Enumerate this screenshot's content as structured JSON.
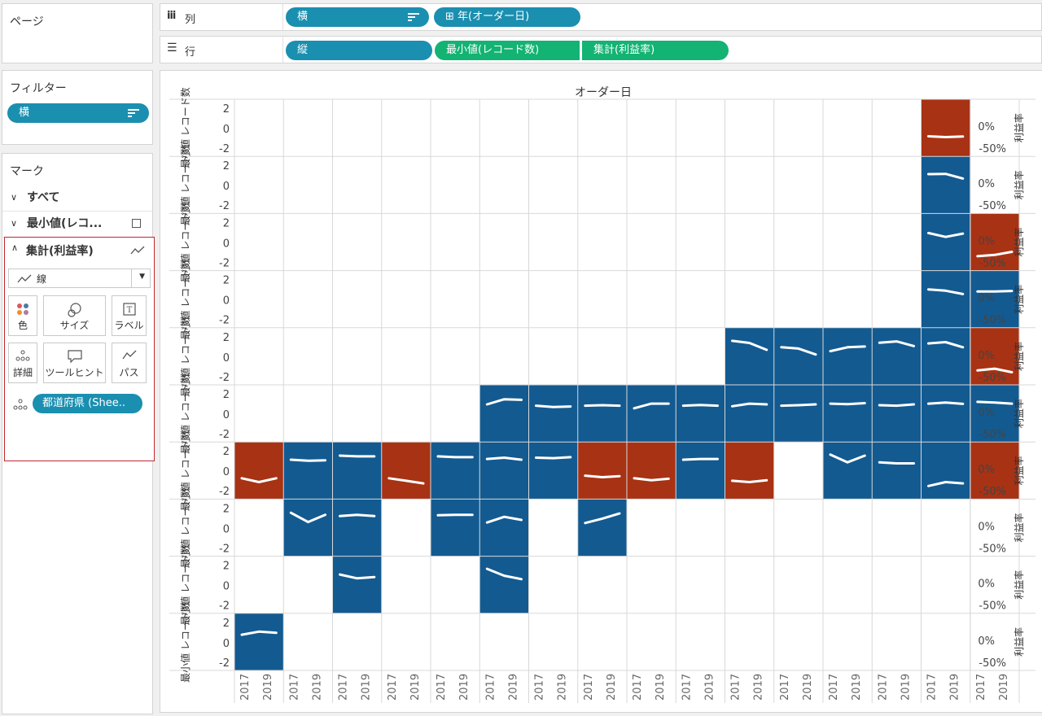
{
  "shelves": {
    "pages_title": "ページ",
    "columns_label": "列",
    "rows_label": "行",
    "columns_pills": [
      "横",
      "⊞ 年(オーダー日)"
    ],
    "rows_pills": [
      "縦",
      "最小値(レコード数)",
      "集計(利益率)"
    ]
  },
  "filters": {
    "title": "フィルター",
    "pill": "横"
  },
  "marks": {
    "title": "マーク",
    "all": "すべて",
    "min_card": "最小値(レコ...",
    "agg_card": "集計(利益率)",
    "mark_type": "線",
    "buttons": {
      "color": "色",
      "size": "サイズ",
      "label": "ラベル",
      "detail": "詳細",
      "tooltip": "ツールヒント",
      "path": "パス"
    },
    "detail_pill": "都道府県 (Shee.."
  },
  "colors": {
    "blue": "#135a91",
    "orange": "#a83214",
    "pill_blue": "#1a8fb0",
    "pill_green": "#13b373"
  },
  "chart_data": {
    "type": "line",
    "title": "オーダー日",
    "left_axis_label": "最小値 レコード数",
    "left_ticks": [
      "2",
      "0",
      "-2"
    ],
    "right_axis_label": "利益率",
    "right_ticks": [
      "0%",
      "-50%"
    ],
    "year_labels": [
      "2017",
      "2019"
    ],
    "cell_colors_legend": "B = blue (profit ≥ 0 overall), O = orange (negative), . = empty",
    "grid": [
      "..............O.",
      "..............B.",
      "..............BO",
      "..............BB",
      "..........BBBBBO",
      ".....BBBBBBBBBBB",
      "OBBOBBBOOBO.BBBO",
      ".BB.BB.B........",
      "..B..B..........",
      "B..............."
    ],
    "lines": {
      "0-14": [
        -0.33,
        -0.36,
        -0.34
      ],
      "1-14": [
        0.42,
        0.43,
        0.25
      ],
      "2-14": [
        0.35,
        0.2,
        0.33
      ],
      "2-15": [
        -0.55,
        -0.5,
        -0.38
      ],
      "3-14": [
        0.38,
        0.33,
        0.2
      ],
      "3-15": [
        0.3,
        0.3,
        0.32
      ],
      "4-10": [
        0.6,
        0.52,
        0.25
      ],
      "4-11": [
        0.35,
        0.3,
        0.07
      ],
      "4-12": [
        0.2,
        0.35,
        0.38
      ],
      "4-13": [
        0.53,
        0.58,
        0.4
      ],
      "4-14": [
        0.5,
        0.55,
        0.35
      ],
      "4-15": [
        -0.55,
        -0.48,
        -0.62
      ],
      "5-5": [
        0.35,
        0.55,
        0.53
      ],
      "5-6": [
        0.3,
        0.25,
        0.27
      ],
      "5-7": [
        0.3,
        0.32,
        0.3
      ],
      "5-8": [
        0.2,
        0.38,
        0.38
      ],
      "5-9": [
        0.3,
        0.33,
        0.3
      ],
      "5-10": [
        0.28,
        0.38,
        0.35
      ],
      "5-11": [
        0.3,
        0.32,
        0.35
      ],
      "5-12": [
        0.38,
        0.36,
        0.4
      ],
      "5-13": [
        0.32,
        0.3,
        0.35
      ],
      "5-14": [
        0.38,
        0.42,
        0.37
      ],
      "5-15": [
        0.45,
        0.42,
        0.38
      ],
      "6-0": [
        -0.3,
        -0.45,
        -0.3
      ],
      "6-1": [
        0.42,
        0.38,
        0.4
      ],
      "6-2": [
        0.58,
        0.55,
        0.55
      ],
      "6-3": [
        -0.3,
        -0.4,
        -0.5
      ],
      "6-4": [
        0.55,
        0.52,
        0.52
      ],
      "6-5": [
        0.45,
        0.5,
        0.42
      ],
      "6-6": [
        0.5,
        0.48,
        0.52
      ],
      "6-7": [
        -0.2,
        -0.26,
        -0.22
      ],
      "6-8": [
        -0.3,
        -0.38,
        -0.32
      ],
      "6-9": [
        0.42,
        0.45,
        0.45
      ],
      "6-10": [
        -0.4,
        -0.45,
        -0.38
      ],
      "6-12": [
        0.62,
        0.32,
        0.58
      ],
      "6-13": [
        0.32,
        0.28,
        0.28
      ],
      "6-14": [
        -0.6,
        -0.45,
        -0.5
      ],
      "7-1": [
        0.58,
        0.22,
        0.5
      ],
      "7-2": [
        0.45,
        0.5,
        0.45
      ],
      "7-4": [
        0.48,
        0.5,
        0.5
      ],
      "7-5": [
        0.2,
        0.42,
        0.3
      ],
      "7-7": [
        0.18,
        0.35,
        0.55
      ],
      "8-2": [
        0.4,
        0.25,
        0.3
      ],
      "8-5": [
        0.62,
        0.35,
        0.22
      ],
      "9-0": [
        0.28,
        0.4,
        0.35
      ]
    }
  }
}
